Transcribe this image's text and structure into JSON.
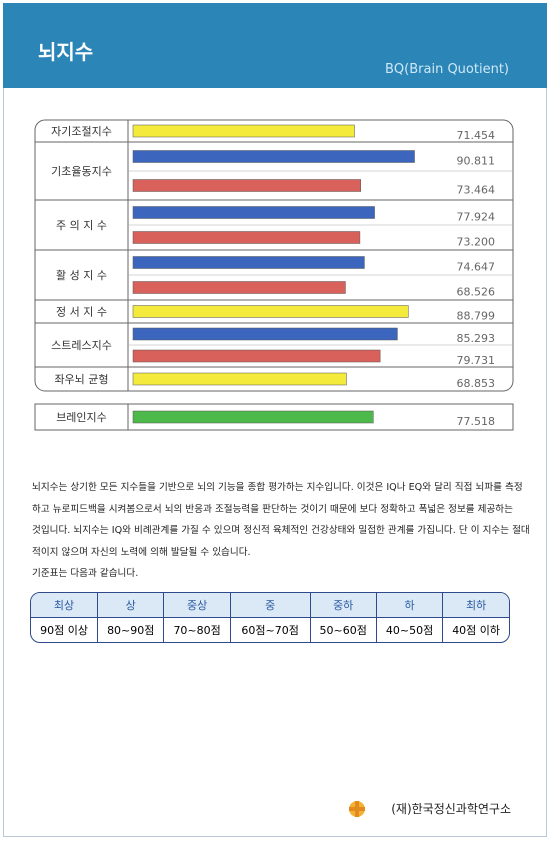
{
  "header": {
    "title": "뇌지수",
    "subtitle": "BQ(Brain Quotient)"
  },
  "indices": [
    {
      "label": "자기조절지수",
      "bars": [
        {
          "color": "#f3ea3c",
          "value": "71.454"
        }
      ]
    },
    {
      "label": "기초율동지수",
      "bars": [
        {
          "color": "#3c66bd",
          "value": "90.811"
        },
        {
          "color": "#d9615b",
          "value": "73.464"
        }
      ]
    },
    {
      "label": "주 의 지 수",
      "bars": [
        {
          "color": "#3c66bd",
          "value": "77.924"
        },
        {
          "color": "#d9615b",
          "value": "73.200"
        }
      ]
    },
    {
      "label": "활 성 지 수",
      "bars": [
        {
          "color": "#3c66bd",
          "value": "74.647"
        },
        {
          "color": "#d9615b",
          "value": "68.526"
        }
      ]
    },
    {
      "label": "정 서 지 수",
      "bars": [
        {
          "color": "#f3ea3c",
          "value": "88.799"
        }
      ]
    },
    {
      "label": "스트레스지수",
      "bars": [
        {
          "color": "#3c66bd",
          "value": "85.293"
        },
        {
          "color": "#d9615b",
          "value": "79.731"
        }
      ]
    },
    {
      "label": "좌우뇌 균형",
      "bars": [
        {
          "color": "#f3ea3c",
          "value": "68.853"
        }
      ]
    }
  ],
  "brain": {
    "label": "브레인지수",
    "bars": [
      {
        "color": "#4cb94a",
        "value": "77.518"
      }
    ]
  },
  "paragraph": [
    "뇌지수는 상기한 모든 지수들을 기반으로 뇌의 기능을 종합 평가하는 지수입니다. 이것은 IQ나 EQ와 달리 직접 뇌파를 측정",
    "하고 뉴로피드백을 시켜봄으로서 뇌의 반응과 조절능력을 판단하는 것이기 때문에 보다 정확하고 폭넓은 정보를 제공하는",
    "것입니다. 뇌지수는 IQ와 비례관계를 가질 수 있으며 정신적 육체적인 건강상태와 밀접한 관계를 가집니다. 단 이 지수는 절대",
    "적이지 않으며 자신의 노력에 의해 발달될 수 있습니다.",
    "기준표는 다음과 같습니다."
  ],
  "grades": {
    "header": [
      "최상",
      "상",
      "중상",
      "중",
      "중하",
      "하",
      "최하"
    ],
    "row": [
      "90점 이상",
      "80~90점",
      "70~80점",
      "60점~70점",
      "50~60점",
      "40~50점",
      "40점 이하"
    ]
  },
  "footer": "(재)한국정신과학연구소"
}
